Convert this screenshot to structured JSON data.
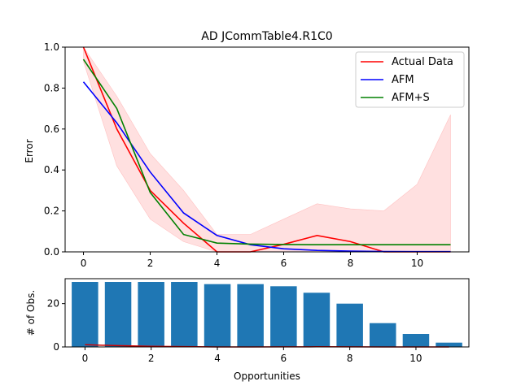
{
  "chart_data": [
    {
      "type": "line",
      "title": "AD JCommTable4.R1C0",
      "xlabel": "",
      "ylabel": "Error",
      "xlim": [
        -0.55,
        11.55
      ],
      "ylim": [
        0,
        1.0
      ],
      "xticks": [
        0,
        2,
        4,
        6,
        8,
        10
      ],
      "yticks": [
        0.0,
        0.2,
        0.4,
        0.6,
        0.8,
        1.0
      ],
      "legend": "top-right",
      "x": [
        0,
        1,
        2,
        3,
        4,
        5,
        6,
        7,
        8,
        9,
        10,
        11
      ],
      "series": [
        {
          "name": "Actual Data",
          "color": "#ff0000",
          "values": [
            1.0,
            0.6,
            0.3,
            0.14,
            0.0,
            0.0,
            0.037,
            0.08,
            0.05,
            0.0,
            0.0,
            0.0
          ]
        },
        {
          "name": "AFM",
          "color": "#0000ff",
          "values": [
            0.83,
            0.63,
            0.39,
            0.19,
            0.08,
            0.035,
            0.015,
            0.007,
            0.004,
            0.002,
            0.001,
            0.001
          ]
        },
        {
          "name": "AFM+S",
          "color": "#008000",
          "values": [
            0.94,
            0.7,
            0.29,
            0.085,
            0.043,
            0.038,
            0.036,
            0.035,
            0.035,
            0.035,
            0.035,
            0.035
          ]
        }
      ],
      "band": {
        "color": "#ffdddd",
        "upper": [
          1.0,
          0.76,
          0.48,
          0.3,
          0.085,
          0.085,
          0.16,
          0.235,
          0.21,
          0.2,
          0.33,
          0.67
        ],
        "lower": [
          0.93,
          0.42,
          0.16,
          0.05,
          0.0,
          0.0,
          0.0,
          0.0,
          0.0,
          0.0,
          0.0,
          0.0
        ]
      }
    },
    {
      "type": "bar",
      "title": "",
      "xlabel": "Opportunities",
      "ylabel": "# of Obs.",
      "xlim": [
        -0.6,
        11.6
      ],
      "ylim": [
        0,
        31.5
      ],
      "xticks": [
        0,
        2,
        4,
        6,
        8,
        10
      ],
      "yticks": [
        0,
        20
      ],
      "x": [
        0,
        1,
        2,
        3,
        4,
        5,
        6,
        7,
        8,
        9,
        10,
        11
      ],
      "values": [
        30,
        30,
        30,
        30,
        29,
        29,
        28,
        25,
        20,
        11,
        6,
        2
      ],
      "bar_color": "#1f77b4",
      "overlay_line": {
        "color": "#cc0000",
        "values": [
          1.0,
          0.6,
          0.3,
          0.14,
          0.0,
          0.0,
          0.037,
          0.08,
          0.05,
          0.0,
          0.0,
          0.0
        ]
      }
    }
  ]
}
